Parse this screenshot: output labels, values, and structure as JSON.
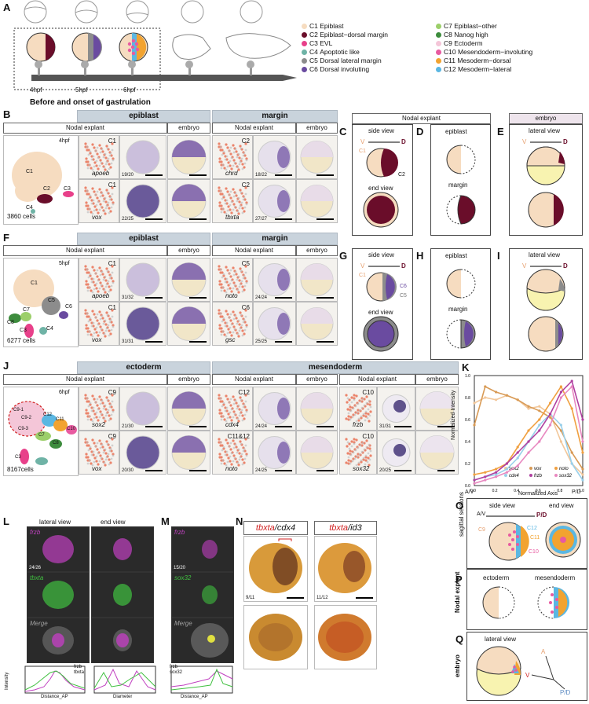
{
  "panels": {
    "A": "A",
    "B": "B",
    "C": "C",
    "D": "D",
    "E": "E",
    "F": "F",
    "G": "G",
    "H": "H",
    "I": "I",
    "J": "J",
    "K": "K",
    "L": "L",
    "M": "M",
    "N": "N",
    "O": "O",
    "P": "P",
    "Q": "Q"
  },
  "timeline": {
    "t1": "4hpf",
    "t2": "5hpf",
    "t3": "6hpf",
    "title": "Before and onset of gastrulation"
  },
  "legend": [
    {
      "label": "C1",
      "name": "Epiblast",
      "color": "#f6dcc0"
    },
    {
      "label": "C2",
      "name": "Epiblast−dorsal margin",
      "color": "#6a0d2a"
    },
    {
      "label": "C3",
      "name": "EVL",
      "color": "#e8408a"
    },
    {
      "label": "C4",
      "name": "Apoptotic like",
      "color": "#6fb3a6"
    },
    {
      "label": "C5",
      "name": "Dorsal lateral margin",
      "color": "#8c8c8c"
    },
    {
      "label": "C6",
      "name": "Dorsal involuting",
      "color": "#6a4ba0"
    },
    {
      "label": "C7",
      "name": "Epiblast−other",
      "color": "#9ccf6a"
    },
    {
      "label": "C8",
      "name": "Nanog high",
      "color": "#3d8c3d"
    },
    {
      "label": "C9",
      "name": "Ectoderm",
      "color": "#f4c6d8"
    },
    {
      "label": "C10",
      "name": "Mesendoderm−involuting",
      "color": "#e85aa0"
    },
    {
      "label": "C11",
      "name": "Mesoderm−dorsal",
      "color": "#f2a330"
    },
    {
      "label": "C12",
      "name": "Mesoderm−lateral",
      "color": "#5bb7e2"
    }
  ],
  "B": {
    "time": "4hpf",
    "cells": "3860 cells",
    "clusters": [
      "C1",
      "C2",
      "C3",
      "C4"
    ],
    "epiblast": "epiblast",
    "margin": "margin",
    "nodal": "Nodal explant",
    "embryo": "embryo",
    "rows": [
      {
        "c1": "C1",
        "g1": "apoeb",
        "f1": "19/20",
        "c2": "C2",
        "g2": "chrd",
        "f2": "18/22"
      },
      {
        "c1": "C1",
        "g1": "vox",
        "f1": "22/25",
        "c2": "C2",
        "g2": "tbxta",
        "f2": "27/27"
      }
    ]
  },
  "CDE": {
    "nodal": "Nodal explant",
    "embryo": "embryo",
    "side": "side view",
    "end": "end view",
    "epiblast": "epiblast",
    "margin": "margin",
    "lateral": "lateral view",
    "V": "V",
    "D": "D",
    "C1": "C1",
    "C2": "C2"
  },
  "F": {
    "time": "5hpf",
    "cells": "6277 cells",
    "clusters": [
      "C1",
      "C5",
      "C6",
      "C7",
      "C8",
      "C3",
      "C4"
    ],
    "epiblast": "epiblast",
    "margin": "margin",
    "nodal": "Nodal explant",
    "embryo": "embryo",
    "rows": [
      {
        "c1": "C1",
        "g1": "apoeb",
        "f1": "31/32",
        "c2": "C5",
        "g2": "noto",
        "f2": "24/24"
      },
      {
        "c1": "C1",
        "g1": "vox",
        "f1": "31/31",
        "c2": "C6",
        "g2": "gsc",
        "f2": "25/25"
      }
    ]
  },
  "GHI": {
    "C5": "C5",
    "C6": "C6"
  },
  "J": {
    "time": "6hpf",
    "cells": "8167cells",
    "clusters": [
      "C9-1",
      "C9-2",
      "C9-3",
      "C12",
      "C11",
      "C10",
      "C7",
      "C8",
      "C3"
    ],
    "ectoderm": "ectoderm",
    "mesendoderm": "mesendoderm",
    "nodal": "Nodal explant",
    "embryo": "embryo",
    "rows": [
      {
        "c1": "C9",
        "g1": "sox2",
        "f1": "21/30",
        "c2": "C12",
        "g2": "cdx4",
        "f2": "24/24",
        "c3": "C10",
        "g3": "frzb",
        "f3": "31/31"
      },
      {
        "c1": "C9",
        "g1": "vox",
        "f1": "20/30",
        "c2": "C11&12",
        "g2": "noto",
        "f2": "24/25",
        "c3": "C10",
        "g3": "sox32",
        "f3": "20/25"
      }
    ]
  },
  "K": {
    "ylabel": "Normalized Intensity",
    "xlabel": "Normalized Axis",
    "xleft": "A/V",
    "xright": "P/D"
  },
  "chart_data": {
    "type": "line",
    "xlabel": "Normalized Axis",
    "ylabel": "Normalized Intensity",
    "xlim": [
      0,
      1
    ],
    "ylim": [
      0,
      1
    ],
    "x": [
      0,
      0.1,
      0.2,
      0.3,
      0.4,
      0.5,
      0.6,
      0.7,
      0.8,
      0.9,
      1.0
    ],
    "series": [
      {
        "name": "sox2",
        "color": "#f2c79a",
        "values": [
          0.75,
          0.8,
          0.78,
          0.82,
          0.78,
          0.7,
          0.72,
          0.65,
          0.4,
          0.2,
          0.1
        ]
      },
      {
        "name": "vox",
        "color": "#d89a55",
        "values": [
          0.55,
          0.9,
          0.85,
          0.82,
          0.78,
          0.72,
          0.68,
          0.62,
          0.5,
          0.3,
          0.15
        ]
      },
      {
        "name": "noto",
        "color": "#f0a040",
        "values": [
          0.1,
          0.12,
          0.15,
          0.2,
          0.35,
          0.5,
          0.6,
          0.75,
          0.9,
          0.7,
          0.3
        ]
      },
      {
        "name": "cdx4",
        "color": "#9ad0ea",
        "values": [
          0.05,
          0.08,
          0.1,
          0.15,
          0.25,
          0.4,
          0.55,
          0.65,
          0.55,
          0.2,
          0.05
        ]
      },
      {
        "name": "frzb",
        "color": "#b040a0",
        "values": [
          0.05,
          0.08,
          0.12,
          0.2,
          0.3,
          0.4,
          0.5,
          0.65,
          0.85,
          0.95,
          0.6
        ]
      },
      {
        "name": "sox32",
        "color": "#e888c0",
        "values": [
          0.02,
          0.05,
          0.08,
          0.12,
          0.18,
          0.3,
          0.4,
          0.55,
          0.8,
          0.9,
          0.4
        ]
      }
    ],
    "x_ticks": [
      "0.0",
      "0.2",
      "0.4",
      "0.6",
      "0.8",
      "1.0"
    ],
    "y_ticks": [
      "0.0",
      "0.2",
      "0.4",
      "0.6",
      "0.8",
      "1.0"
    ]
  },
  "L": {
    "lateral": "lateral view",
    "end": "end view",
    "frzb": "frzb",
    "tbxta": "tbxta",
    "merge": "Merge",
    "frac": "24/26",
    "xl1": "Distance_AP",
    "xl2": "Diameter",
    "yl": "Intensity",
    "leg1": "frzb",
    "leg2": "tbxta"
  },
  "M": {
    "frzb": "frzb",
    "sox32": "sox32",
    "merge": "Merge",
    "frac": "15/20",
    "xl": "Distance_AP",
    "yl": "Intensity",
    "leg1": "frzb",
    "leg2": "sox32"
  },
  "N": {
    "h1a": "tbxta",
    "h1b": "cdx4",
    "h2a": "tbxta",
    "h2b": "id3",
    "f1": "9/11",
    "f2": "11/12"
  },
  "O": {
    "side": "side view",
    "end": "end view",
    "sag": "sagittal sections",
    "AV": "A/V",
    "PD": "P/D",
    "C9": "C9",
    "C12": "C12",
    "C11": "C11",
    "C10": "C10"
  },
  "P": {
    "nodal": "Nodal explant",
    "ectoderm": "ectoderm",
    "mesendoderm": "mesendoderm"
  },
  "Q": {
    "embryo": "embryo",
    "lateral": "lateral view",
    "A": "A",
    "V": "V",
    "PD": "P/D"
  }
}
